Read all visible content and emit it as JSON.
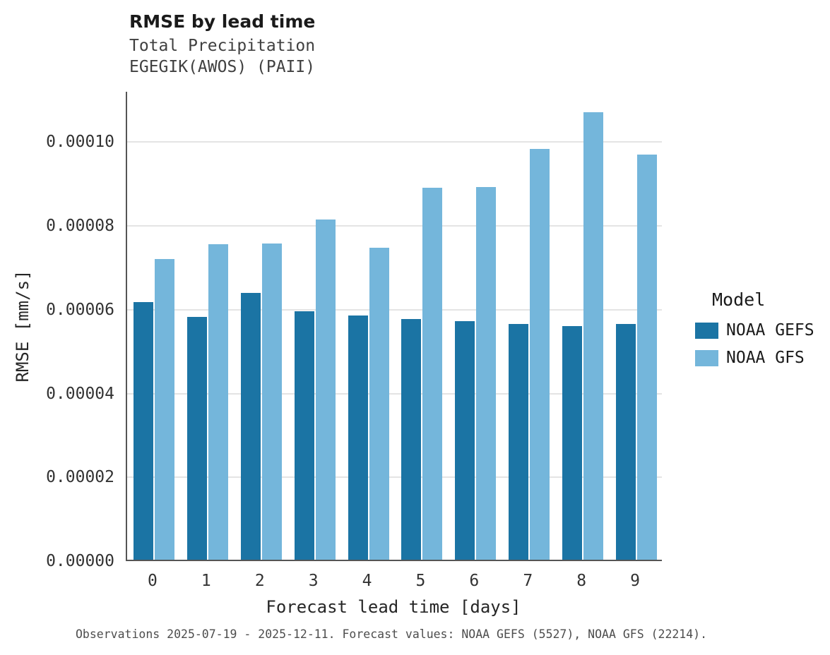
{
  "header": {
    "title": "RMSE by lead time",
    "subtitle1": "Total Precipitation",
    "subtitle2": "EGEGIK(AWOS) (PAII)"
  },
  "chart_data": {
    "type": "bar",
    "title": "RMSE by lead time",
    "subtitle": "Total Precipitation EGEGIK(AWOS) (PAII)",
    "xlabel": "Forecast lead time [days]",
    "ylabel": "RMSE [mm/s]",
    "categories": [
      "0",
      "1",
      "2",
      "3",
      "4",
      "5",
      "6",
      "7",
      "8",
      "9"
    ],
    "series": [
      {
        "name": "NOAA GEFS",
        "color": "#1b74a4",
        "values": [
          6.14e-05,
          5.8e-05,
          6.36e-05,
          5.93e-05,
          5.83e-05,
          5.74e-05,
          5.69e-05,
          5.62e-05,
          5.57e-05,
          5.63e-05
        ]
      },
      {
        "name": "NOAA GFS",
        "color": "#74b6db",
        "values": [
          7.18e-05,
          7.53e-05,
          7.54e-05,
          8.11e-05,
          7.44e-05,
          8.88e-05,
          8.89e-05,
          9.81e-05,
          0.0001067,
          9.66e-05
        ]
      }
    ],
    "ylim": [
      0,
      0.000112
    ],
    "y_ticks": [
      {
        "value": 0,
        "label": "0.00000"
      },
      {
        "value": 2e-05,
        "label": "0.00002"
      },
      {
        "value": 4e-05,
        "label": "0.00004"
      },
      {
        "value": 6e-05,
        "label": "0.00006"
      },
      {
        "value": 8e-05,
        "label": "0.00008"
      },
      {
        "value": 0.0001,
        "label": "0.00010"
      }
    ],
    "grid": true,
    "legend_position": "right",
    "legend_title": "Model"
  },
  "caption": "Observations 2025-07-19 - 2025-12-11. Forecast values: NOAA GEFS (5527), NOAA GFS (22214)."
}
